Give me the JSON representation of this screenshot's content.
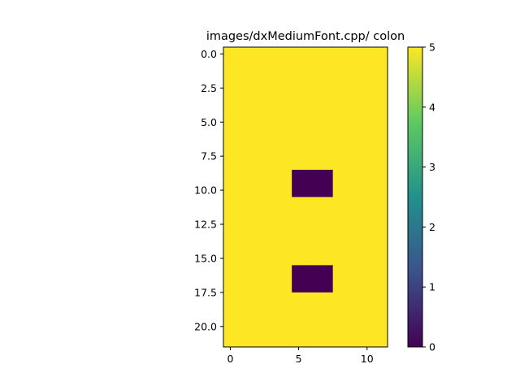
{
  "chart_data": {
    "type": "heatmap",
    "title": "images/dxMediumFont.cpp/ colon",
    "xlabel": "",
    "ylabel": "",
    "rows": 22,
    "cols": 12,
    "background_value": 5,
    "cells": [
      {
        "row": 9,
        "col": 5,
        "value": 0
      },
      {
        "row": 9,
        "col": 6,
        "value": 0
      },
      {
        "row": 9,
        "col": 7,
        "value": 0
      },
      {
        "row": 10,
        "col": 5,
        "value": 0
      },
      {
        "row": 10,
        "col": 6,
        "value": 0
      },
      {
        "row": 10,
        "col": 7,
        "value": 0
      },
      {
        "row": 16,
        "col": 5,
        "value": 0
      },
      {
        "row": 16,
        "col": 6,
        "value": 0
      },
      {
        "row": 16,
        "col": 7,
        "value": 0
      },
      {
        "row": 17,
        "col": 5,
        "value": 0
      },
      {
        "row": 17,
        "col": 6,
        "value": 0
      },
      {
        "row": 17,
        "col": 7,
        "value": 0
      }
    ],
    "xlim": [
      -0.5,
      11.5
    ],
    "ylim": [
      21.5,
      -0.5
    ],
    "x_ticks": [
      0,
      5,
      10
    ],
    "x_tick_labels": [
      "0",
      "5",
      "10"
    ],
    "y_ticks": [
      0,
      2.5,
      5,
      7.5,
      10,
      12.5,
      15,
      17.5,
      20
    ],
    "y_tick_labels": [
      "0.0",
      "2.5",
      "5.0",
      "7.5",
      "10.0",
      "12.5",
      "15.0",
      "17.5",
      "20.0"
    ],
    "colormap": "viridis",
    "colorbar": {
      "range": [
        0,
        5
      ],
      "ticks": [
        0,
        1,
        2,
        3,
        4,
        5
      ],
      "tick_labels": [
        "0",
        "1",
        "2",
        "3",
        "4",
        "5"
      ],
      "stops": [
        "#440154",
        "#3b528b",
        "#21918c",
        "#5ec962",
        "#fde725"
      ]
    },
    "colors": {
      "high": "#fde725",
      "low": "#440154"
    }
  }
}
